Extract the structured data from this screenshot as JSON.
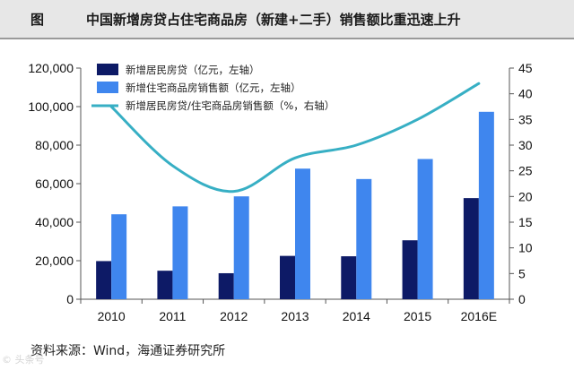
{
  "header": {
    "fig_label": "图",
    "title": "中国新增房贷占住宅商品房（新建+二手）销售额比重迅速上升"
  },
  "source": "资料来源：Wind，海通证券研究所",
  "watermark": "© 头条号",
  "chart_data": {
    "type": "bar",
    "categories": [
      "2010",
      "2011",
      "2012",
      "2013",
      "2014",
      "2015",
      "2016E"
    ],
    "series": [
      {
        "name": "新增居民房贷（亿元，左轴）",
        "kind": "bar",
        "axis": "left",
        "color": "#0d1a66",
        "values": [
          19800,
          14800,
          13500,
          22500,
          22300,
          30600,
          52500
        ]
      },
      {
        "name": "新增住宅商品房销售额（亿元，左轴）",
        "kind": "bar",
        "axis": "left",
        "color": "#3f86ee",
        "values": [
          44100,
          48200,
          53400,
          67800,
          62400,
          72800,
          97300
        ]
      },
      {
        "name": "新增居民房贷/住宅商品房销售额（%，右轴）",
        "kind": "line",
        "axis": "right",
        "color": "#37afc4",
        "values": [
          37.5,
          26,
          21,
          27.5,
          30,
          35,
          42
        ]
      }
    ],
    "left_axis": {
      "ylim": [
        0,
        120000
      ],
      "ticks": [
        0,
        20000,
        40000,
        60000,
        80000,
        100000,
        120000
      ],
      "tick_labels": [
        "0",
        "20,000",
        "40,000",
        "60,000",
        "80,000",
        "100,000",
        "120,000"
      ]
    },
    "right_axis": {
      "ylim": [
        0,
        45
      ],
      "ticks": [
        0,
        5,
        10,
        15,
        20,
        25,
        30,
        35,
        40,
        45
      ],
      "tick_labels": [
        "0",
        "5",
        "10",
        "15",
        "20",
        "25",
        "30",
        "35",
        "40",
        "45"
      ]
    },
    "grid": false,
    "legend_position": "top-left"
  }
}
